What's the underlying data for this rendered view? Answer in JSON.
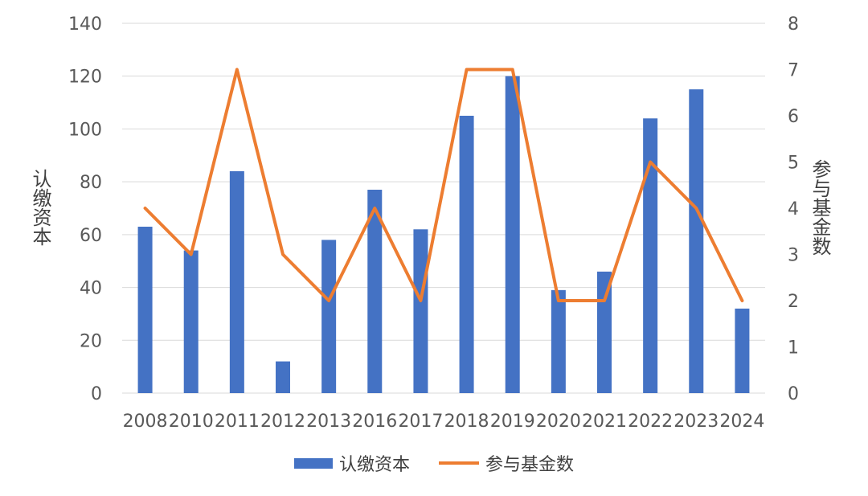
{
  "chart_data": {
    "type": "bar+line",
    "categories": [
      "2008",
      "2010",
      "2011",
      "2012",
      "2013",
      "2016",
      "2017",
      "2018",
      "2019",
      "2020",
      "2021",
      "2022",
      "2023",
      "2024"
    ],
    "series": [
      {
        "name": "认缴资本",
        "type": "bar",
        "axis": "left",
        "color": "#4472C4",
        "values": [
          63,
          54,
          84,
          12,
          58,
          77,
          62,
          105,
          120,
          39,
          46,
          104,
          115,
          32
        ]
      },
      {
        "name": "参与基金数",
        "type": "line",
        "axis": "right",
        "color": "#ED7D31",
        "values": [
          4,
          3,
          7,
          3,
          2,
          4,
          2,
          7,
          7,
          2,
          2,
          5,
          4,
          2
        ]
      }
    ],
    "y_left": {
      "label": "认缴资本",
      "lim": [
        0,
        140
      ],
      "ticks": [
        "0",
        "20",
        "40",
        "60",
        "80",
        "100",
        "120",
        "140"
      ]
    },
    "y_right": {
      "label": "参与基金数",
      "lim": [
        0,
        8
      ],
      "ticks": [
        "0",
        "1",
        "2",
        "3",
        "4",
        "5",
        "6",
        "7",
        "8"
      ]
    },
    "grid": true,
    "legend_position": "bottom"
  }
}
